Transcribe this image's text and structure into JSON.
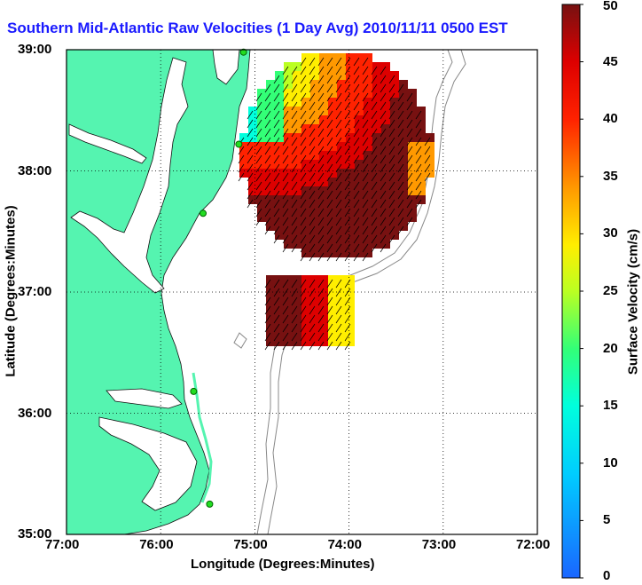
{
  "title": "Southern Mid-Atlantic Raw Velocities (1 Day Avg) 2010/11/11 0500 EST",
  "xlabel": "Longitude (Degrees:Minutes)",
  "ylabel": "Latitude (Degrees:Minutes)",
  "colorbar": {
    "label": "Surface Velocity (cm/s)",
    "min": 0,
    "max": 50,
    "ticks": [
      "0",
      "5",
      "10",
      "15",
      "20",
      "25",
      "30",
      "35",
      "40",
      "45",
      "50"
    ]
  },
  "x_ticks": [
    "77:00",
    "76:00",
    "75:00",
    "74:00",
    "73:00",
    "72:00"
  ],
  "y_ticks": [
    "39:00",
    "38:00",
    "37:00",
    "36:00",
    "35:00"
  ],
  "colors": {
    "land": "#55f4b0",
    "ocean": "#ffffff",
    "title": "#1a1aff",
    "station": "#22dd22"
  },
  "map_extent": {
    "lon": [
      -77,
      -72
    ],
    "lat": [
      35,
      39
    ]
  },
  "stations": [
    {
      "lon": -75.12,
      "lat": 38.98
    },
    {
      "lon": -75.17,
      "lat": 38.22
    },
    {
      "lon": -75.55,
      "lat": 37.65
    },
    {
      "lon": -75.65,
      "lat": 36.18
    },
    {
      "lon": -75.48,
      "lat": 35.25
    }
  ]
}
